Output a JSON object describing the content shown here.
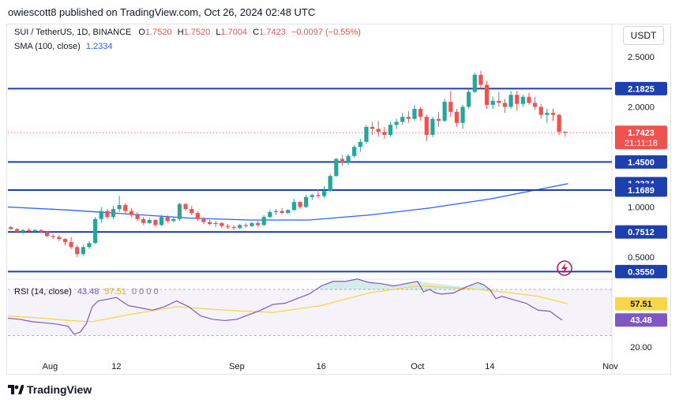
{
  "header": "owiescott8 published on TradingView.com, Oct 26, 2024 02:48 UTC",
  "legend": {
    "symbol": "SUI / TetherUS, 1D, BINANCE",
    "o_label": "O",
    "o": "1.7520",
    "h_label": "H",
    "h": "1.7520",
    "l_label": "L",
    "l": "1.7004",
    "c_label": "C",
    "c": "1.7423",
    "change": "−0.0097 (−0.55%)",
    "sma_label": "SMA (100, close)",
    "sma_value": "1.2334",
    "rsi_label": "RSI (14, close)",
    "rsi_value": "43.48",
    "rsi_ma_value": "57.51",
    "rsi_extra": "0 0 0 0"
  },
  "currency_button": "USDT",
  "brand": "TradingView",
  "colors": {
    "up": "#26a69a",
    "down": "#ef5350",
    "sma": "#2962ff",
    "level": "#1e40af",
    "rsi": "#7e57c2",
    "rsi_ma": "#f7d64a",
    "price_label": "#ef5350"
  },
  "chart_data": {
    "type": "candlestick",
    "title": "SUI / TetherUS, 1D, BINANCE",
    "x_ticks": [
      "Aug",
      "12",
      "Sep",
      "16",
      "Oct",
      "14",
      "Nov"
    ],
    "x_tick_days": [
      7,
      18,
      38,
      52,
      68,
      80,
      100
    ],
    "price_axis_ticks": [
      "2.5000",
      "2.0000",
      "1.0000",
      "0.5000"
    ],
    "price_axis_values": [
      2.5,
      2.0,
      1.0,
      0.5
    ],
    "price_scale_points": [
      [
        2.5,
        72
      ],
      [
        0.5,
        326
      ]
    ],
    "levels": [
      {
        "label": "2.1825",
        "value": 2.1825
      },
      {
        "label": "1.4500",
        "value": 1.45
      },
      {
        "label": "1.2334",
        "value": 1.2334
      },
      {
        "label": "1.1689",
        "value": 1.1689
      },
      {
        "label": "0.7512",
        "value": 0.7512
      },
      {
        "label": "0.3550",
        "value": 0.355
      }
    ],
    "level_lines": [
      2.1825,
      1.45,
      1.1689,
      0.7512,
      0.355
    ],
    "current_price": {
      "value": 1.7423,
      "label": "1.7423",
      "countdown": "21:11:18"
    },
    "ohlc": [
      [
        0.8,
        0.81,
        0.77,
        0.78
      ],
      [
        0.78,
        0.79,
        0.74,
        0.75
      ],
      [
        0.75,
        0.78,
        0.73,
        0.77
      ],
      [
        0.77,
        0.79,
        0.75,
        0.76
      ],
      [
        0.76,
        0.78,
        0.74,
        0.77
      ],
      [
        0.77,
        0.78,
        0.74,
        0.75
      ],
      [
        0.75,
        0.76,
        0.7,
        0.71
      ],
      [
        0.71,
        0.73,
        0.68,
        0.7
      ],
      [
        0.7,
        0.72,
        0.66,
        0.68
      ],
      [
        0.68,
        0.69,
        0.62,
        0.65
      ],
      [
        0.65,
        0.7,
        0.58,
        0.6
      ],
      [
        0.6,
        0.62,
        0.5,
        0.53
      ],
      [
        0.53,
        0.62,
        0.51,
        0.6
      ],
      [
        0.6,
        0.66,
        0.58,
        0.64
      ],
      [
        0.64,
        0.9,
        0.63,
        0.88
      ],
      [
        0.88,
        1.0,
        0.84,
        0.96
      ],
      [
        0.96,
        0.98,
        0.88,
        0.9
      ],
      [
        0.9,
        1.01,
        0.88,
        0.98
      ],
      [
        0.98,
        1.11,
        0.95,
        1.02
      ],
      [
        1.02,
        1.04,
        0.94,
        0.96
      ],
      [
        0.96,
        0.99,
        0.9,
        0.92
      ],
      [
        0.92,
        0.95,
        0.86,
        0.88
      ],
      [
        0.88,
        0.9,
        0.82,
        0.84
      ],
      [
        0.84,
        0.89,
        0.83,
        0.87
      ],
      [
        0.87,
        0.88,
        0.8,
        0.82
      ],
      [
        0.82,
        0.92,
        0.81,
        0.9
      ],
      [
        0.9,
        0.92,
        0.84,
        0.86
      ],
      [
        0.86,
        0.9,
        0.85,
        0.88
      ],
      [
        0.88,
        1.04,
        0.86,
        1.03
      ],
      [
        1.03,
        1.04,
        0.96,
        0.98
      ],
      [
        0.98,
        1.01,
        0.92,
        0.94
      ],
      [
        0.94,
        0.96,
        0.86,
        0.88
      ],
      [
        0.88,
        0.9,
        0.83,
        0.85
      ],
      [
        0.85,
        0.87,
        0.82,
        0.83
      ],
      [
        0.83,
        0.86,
        0.8,
        0.84
      ],
      [
        0.84,
        0.85,
        0.79,
        0.81
      ],
      [
        0.81,
        0.83,
        0.78,
        0.8
      ],
      [
        0.8,
        0.82,
        0.77,
        0.79
      ],
      [
        0.79,
        0.83,
        0.78,
        0.82
      ],
      [
        0.82,
        0.84,
        0.79,
        0.81
      ],
      [
        0.81,
        0.85,
        0.8,
        0.84
      ],
      [
        0.84,
        0.86,
        0.8,
        0.82
      ],
      [
        0.82,
        0.92,
        0.81,
        0.9
      ],
      [
        0.9,
        0.97,
        0.89,
        0.95
      ],
      [
        0.95,
        0.98,
        0.92,
        0.96
      ],
      [
        0.96,
        0.99,
        0.93,
        0.94
      ],
      [
        0.94,
        0.98,
        0.93,
        0.97
      ],
      [
        0.97,
        1.08,
        0.96,
        1.05
      ],
      [
        1.05,
        1.06,
        0.98,
        1.0
      ],
      [
        1.0,
        1.12,
        0.99,
        1.1
      ],
      [
        1.1,
        1.13,
        1.07,
        1.12
      ],
      [
        1.12,
        1.18,
        1.09,
        1.11
      ],
      [
        1.11,
        1.21,
        1.09,
        1.16
      ],
      [
        1.16,
        1.33,
        1.15,
        1.31
      ],
      [
        1.31,
        1.49,
        1.3,
        1.48
      ],
      [
        1.48,
        1.52,
        1.41,
        1.44
      ],
      [
        1.44,
        1.53,
        1.42,
        1.51
      ],
      [
        1.51,
        1.62,
        1.49,
        1.6
      ],
      [
        1.6,
        1.68,
        1.55,
        1.65
      ],
      [
        1.65,
        1.82,
        1.63,
        1.8
      ],
      [
        1.8,
        1.85,
        1.72,
        1.78
      ],
      [
        1.78,
        1.86,
        1.7,
        1.75
      ],
      [
        1.75,
        1.8,
        1.68,
        1.72
      ],
      [
        1.72,
        1.85,
        1.7,
        1.82
      ],
      [
        1.82,
        1.88,
        1.78,
        1.85
      ],
      [
        1.85,
        1.94,
        1.82,
        1.9
      ],
      [
        1.9,
        1.96,
        1.84,
        1.88
      ],
      [
        1.88,
        2.02,
        1.86,
        1.98
      ],
      [
        1.98,
        2.0,
        1.86,
        1.9
      ],
      [
        1.9,
        1.92,
        1.66,
        1.72
      ],
      [
        1.72,
        1.9,
        1.7,
        1.88
      ],
      [
        1.88,
        1.95,
        1.8,
        1.86
      ],
      [
        1.86,
        2.08,
        1.85,
        2.05
      ],
      [
        2.05,
        2.16,
        1.9,
        1.95
      ],
      [
        1.95,
        1.98,
        1.8,
        1.84
      ],
      [
        1.84,
        2.02,
        1.78,
        2.0
      ],
      [
        2.0,
        2.18,
        1.98,
        2.15
      ],
      [
        2.15,
        2.34,
        2.14,
        2.32
      ],
      [
        2.32,
        2.36,
        2.18,
        2.22
      ],
      [
        2.22,
        2.26,
        1.98,
        2.02
      ],
      [
        2.02,
        2.1,
        1.98,
        2.06
      ],
      [
        2.06,
        2.15,
        2.0,
        2.04
      ],
      [
        2.04,
        2.08,
        1.94,
        2.0
      ],
      [
        2.0,
        2.16,
        1.98,
        2.12
      ],
      [
        2.12,
        2.16,
        1.96,
        2.03
      ],
      [
        2.03,
        2.12,
        2.0,
        2.1
      ],
      [
        2.1,
        2.14,
        2.02,
        2.04
      ],
      [
        2.04,
        2.1,
        1.97,
        2.0
      ],
      [
        2.0,
        2.03,
        1.88,
        1.92
      ],
      [
        1.92,
        1.98,
        1.84,
        1.94
      ],
      [
        1.94,
        1.98,
        1.86,
        1.92
      ],
      [
        1.92,
        1.93,
        1.72,
        1.75
      ],
      [
        1.752,
        1.752,
        1.7004,
        1.7423
      ]
    ],
    "sma": [
      [
        0,
        1.0
      ],
      [
        10,
        0.97
      ],
      [
        20,
        0.93
      ],
      [
        30,
        0.89
      ],
      [
        40,
        0.87
      ],
      [
        50,
        0.87
      ],
      [
        60,
        0.92
      ],
      [
        70,
        0.99
      ],
      [
        80,
        1.08
      ],
      [
        93,
        1.2334
      ]
    ],
    "rsi": {
      "y_axis_label": "20.00",
      "y_axis_value": 20,
      "band": [
        30,
        70
      ],
      "scale_points": [
        [
          70,
          367
        ],
        [
          20,
          440
        ]
      ],
      "rsi_values": [
        [
          0,
          45
        ],
        [
          2,
          44
        ],
        [
          4,
          42
        ],
        [
          6,
          41
        ],
        [
          8,
          40
        ],
        [
          10,
          38
        ],
        [
          11,
          31
        ],
        [
          12,
          33
        ],
        [
          13,
          40
        ],
        [
          14,
          55
        ],
        [
          15,
          60
        ],
        [
          17,
          62
        ],
        [
          18,
          63
        ],
        [
          20,
          56
        ],
        [
          22,
          54
        ],
        [
          24,
          52
        ],
        [
          26,
          55
        ],
        [
          28,
          60
        ],
        [
          30,
          55
        ],
        [
          32,
          47
        ],
        [
          34,
          44
        ],
        [
          36,
          43
        ],
        [
          38,
          44
        ],
        [
          40,
          48
        ],
        [
          42,
          52
        ],
        [
          44,
          57
        ],
        [
          46,
          58
        ],
        [
          48,
          62
        ],
        [
          50,
          66
        ],
        [
          52,
          73
        ],
        [
          54,
          77
        ],
        [
          56,
          77
        ],
        [
          58,
          79
        ],
        [
          60,
          76
        ],
        [
          62,
          75
        ],
        [
          64,
          73
        ],
        [
          66,
          75
        ],
        [
          68,
          77
        ],
        [
          69,
          68
        ],
        [
          70,
          70
        ],
        [
          71,
          67
        ],
        [
          72,
          66
        ],
        [
          74,
          67
        ],
        [
          76,
          72
        ],
        [
          78,
          76
        ],
        [
          79,
          74
        ],
        [
          80,
          70
        ],
        [
          81,
          62
        ],
        [
          82,
          64
        ],
        [
          84,
          61
        ],
        [
          86,
          58
        ],
        [
          88,
          52
        ],
        [
          90,
          51
        ],
        [
          91,
          47
        ],
        [
          92,
          43.48
        ]
      ],
      "rsi_ma_values": [
        [
          0,
          47
        ],
        [
          6,
          45
        ],
        [
          10,
          43
        ],
        [
          14,
          42
        ],
        [
          20,
          48
        ],
        [
          28,
          55
        ],
        [
          36,
          52
        ],
        [
          44,
          50
        ],
        [
          52,
          56
        ],
        [
          60,
          67
        ],
        [
          68,
          73
        ],
        [
          76,
          71
        ],
        [
          82,
          68
        ],
        [
          88,
          64
        ],
        [
          93,
          57.51
        ]
      ]
    }
  }
}
